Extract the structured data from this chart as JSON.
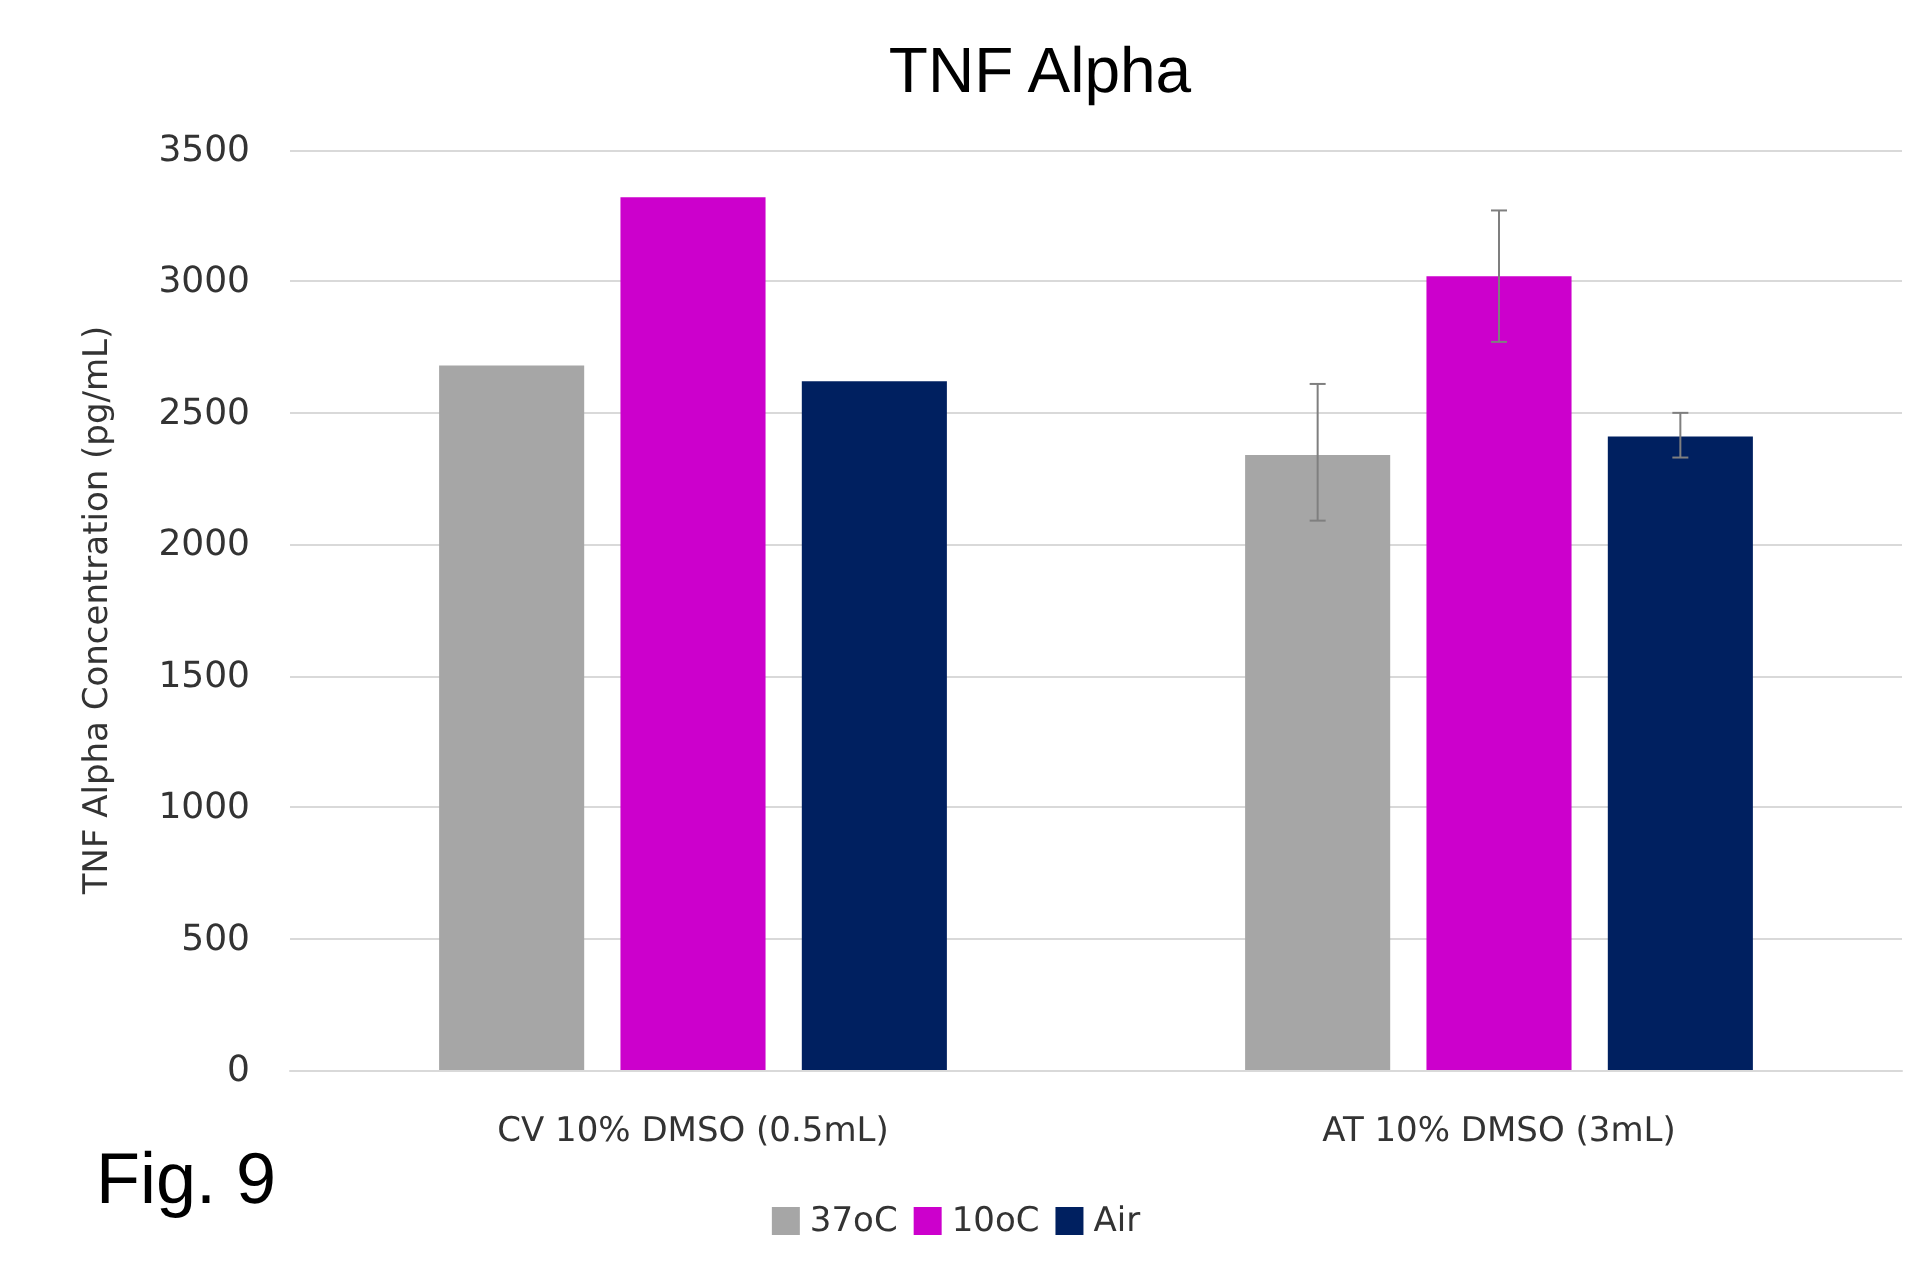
{
  "chart_data": {
    "type": "bar",
    "title": "TNF Alpha",
    "ylabel": "TNF Alpha Concentration (pg/mL)",
    "categories": [
      "CV 10% DMSO (0.5mL)",
      "AT 10% DMSO (3mL)"
    ],
    "series": [
      {
        "name": "37oC",
        "color": "#a6a6a6",
        "values": [
          2680,
          2340
        ],
        "errors": [
          null,
          [
            2090,
            2610
          ]
        ]
      },
      {
        "name": "10oC",
        "color": "#cc00cc",
        "values": [
          3320,
          3020
        ],
        "errors": [
          null,
          250
        ]
      },
      {
        "name": "Air",
        "color": "#002060",
        "values": [
          2620,
          2410
        ],
        "errors": [
          null,
          [
            2330,
            2500
          ]
        ]
      }
    ],
    "ylim": [
      0,
      3500
    ],
    "yticks": [
      0,
      500,
      1000,
      1500,
      2000,
      2500,
      3000,
      3500
    ],
    "grid": "y",
    "legend": "bottom",
    "annotations": [
      "Fig. 9"
    ]
  }
}
